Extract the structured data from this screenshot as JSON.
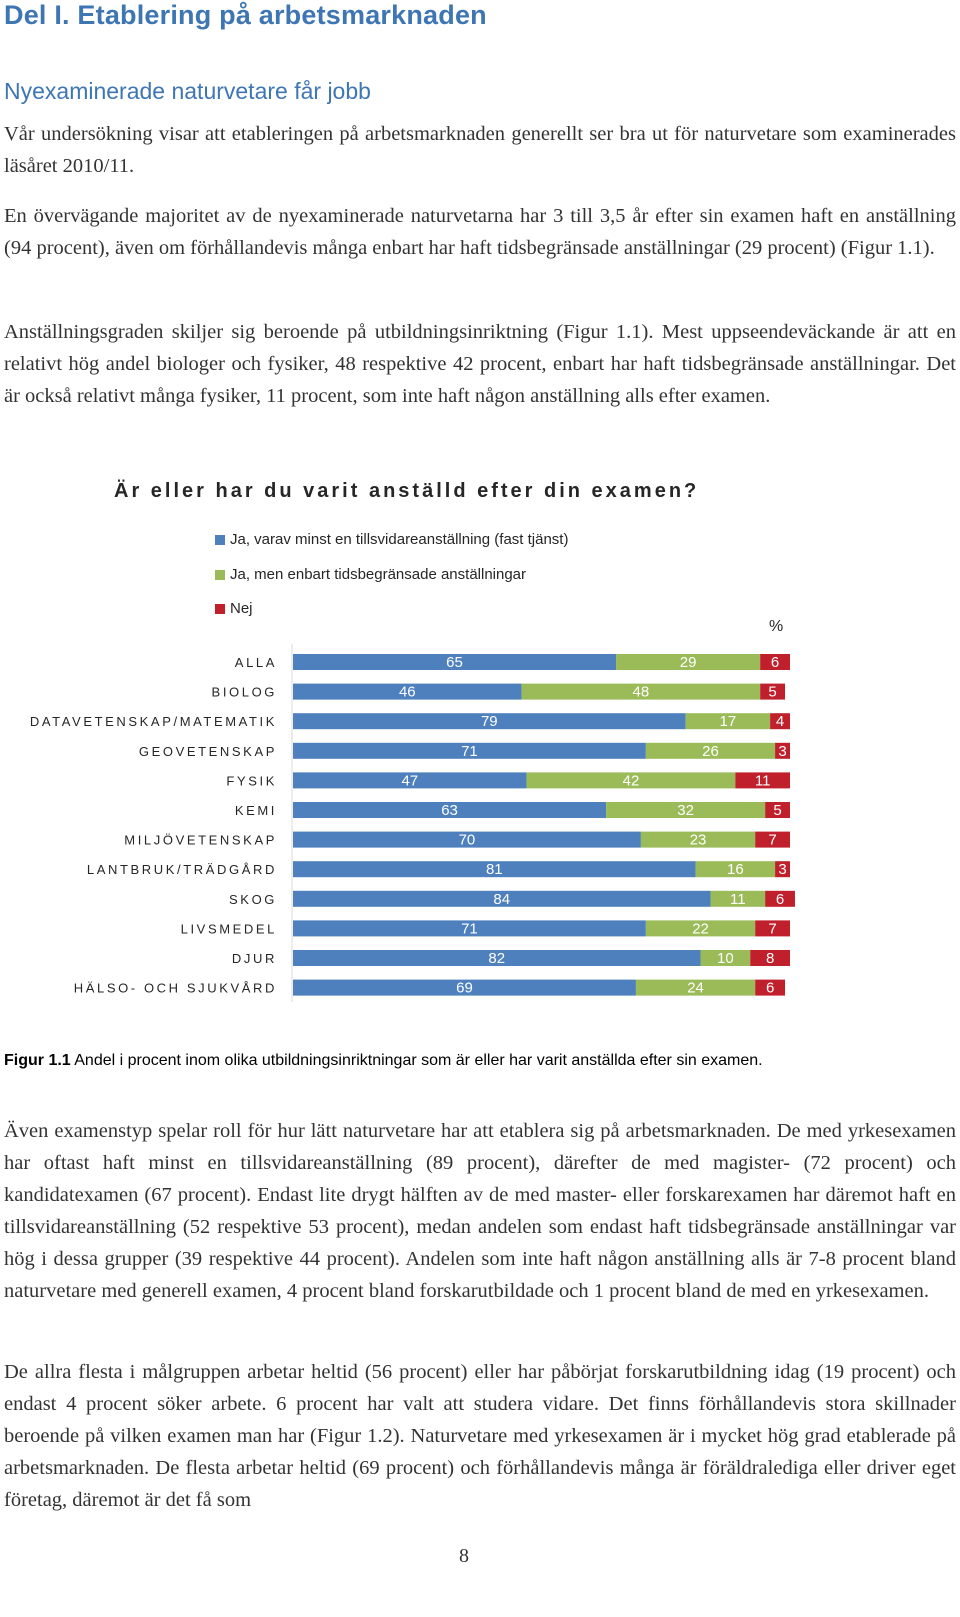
{
  "heading": "Del I. Etablering på arbetsmarknaden",
  "subheading": "Nyexaminerade naturvetare får jobb",
  "paragraphs": {
    "p1": "Vår undersökning visar att etableringen på arbetsmarknaden generellt ser bra ut för naturvetare som examinerades läsåret 2010/11.",
    "p2": "En övervägande majoritet av de nyexaminerade naturvetarna har 3 till 3,5 år efter sin examen haft en anställning (94 procent), även om förhållandevis många enbart har haft tidsbegränsade anställningar (29 procent) (Figur 1.1).",
    "p3": "Anställningsgraden skiljer sig beroende på utbildningsinriktning (Figur 1.1). Mest uppseendeväckande är att en relativt hög andel biologer och fysiker, 48 respektive 42 procent, enbart har haft tidsbegränsade anställningar. Det är också relativt många fysiker, 11 procent, som inte haft någon anställning alls efter examen.",
    "p4": "Även examenstyp spelar roll för hur lätt naturvetare har att etablera sig på arbetsmarknaden. De med yrkesexamen har oftast haft minst en tillsvidareanställning (89 procent), därefter de med magister- (72 procent) och kandidatexamen (67 procent). Endast lite drygt hälften av de med master- eller forskarexamen har däremot haft en tillsvidareanställning (52 respektive 53 procent), medan andelen som endast haft tidsbegränsade anställningar var hög i dessa grupper (39 respektive 44 procent). Andelen som inte haft någon anställning alls är 7-8 procent bland naturvetare med generell examen, 4 procent bland forskarutbildade och 1 procent bland de med en yrkesexamen.",
    "p5": "De allra flesta i målgruppen arbetar heltid (56 procent) eller har påbörjat forskarutbildning idag (19 procent) och endast 4 procent söker arbete. 6 procent har valt att studera vidare. Det finns förhållandevis stora skillnader beroende på vilken examen man har (Figur 1.2). Naturvetare med yrkesexamen är i mycket hög grad etablerade på arbetsmarknaden. De flesta arbetar heltid (69 procent) och förhållandevis många är föräldralediga eller driver eget företag, däremot är det få som"
  },
  "chart_data": {
    "type": "bar",
    "orientation": "horizontal",
    "stacked": true,
    "title": "Är eller har du varit anställd efter din examen?",
    "unit": "%",
    "legend_position": "top",
    "categories": [
      "ALLA",
      "BIOLOG",
      "DATAVETENSKAP/MATEMATIK",
      "GEOVETENSKAP",
      "FYSIK",
      "KEMI",
      "MILJÖVETENSKAP",
      "LANTBRUK/TRÄDGÅRD",
      "SKOG",
      "LIVSMEDEL",
      "DJUR",
      "HÄLSO- OCH SJUKVÅRD"
    ],
    "series": [
      {
        "name": "Ja, varav minst en tillsvidareanställning (fast tjänst)",
        "color": "#4e80bd",
        "values": [
          65,
          46,
          79,
          71,
          47,
          63,
          70,
          81,
          84,
          71,
          82,
          69
        ]
      },
      {
        "name": "Ja, men enbart tidsbegränsade anställningar",
        "color": "#9bbb59",
        "values": [
          29,
          48,
          17,
          26,
          42,
          32,
          23,
          16,
          11,
          22,
          10,
          24
        ]
      },
      {
        "name": "Nej",
        "color": "#c0202b",
        "values": [
          6,
          5,
          4,
          3,
          11,
          5,
          7,
          3,
          6,
          7,
          8,
          6
        ]
      }
    ],
    "xlim": [
      0,
      100
    ],
    "grid": false
  },
  "caption": {
    "bold": "Figur 1.1",
    "text": " Andel i procent inom olika utbildningsinriktningar som är eller har varit anställda efter sin examen."
  },
  "page_number": "8"
}
